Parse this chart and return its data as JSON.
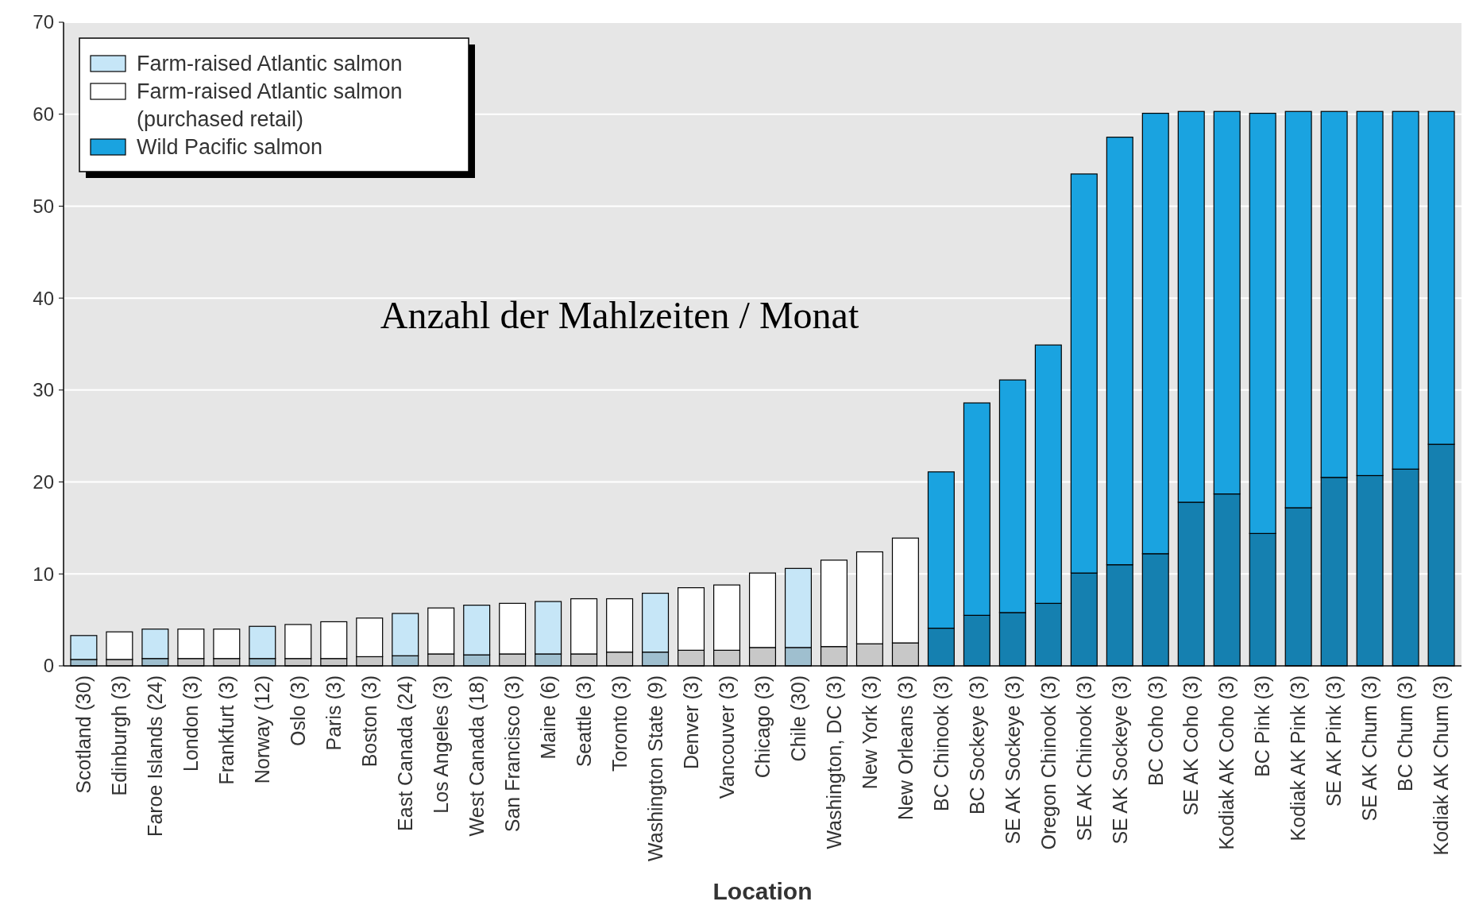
{
  "chart_data": {
    "type": "bar",
    "stacked": true,
    "xlabel": "Location",
    "annotations": [
      "Anzahl der Mahlzeiten / Monat"
    ],
    "categories": [
      "Scotland (30)",
      "Edinburgh (3)",
      "Faroe Islands (24)",
      "London (3)",
      "Frankfurt (3)",
      "Norway (12)",
      "Oslo (3)",
      "Paris (3)",
      "Boston (3)",
      "East Canada (24)",
      "Los Angeles (3)",
      "West Canada (18)",
      "San Francisco (3)",
      "Maine (6)",
      "Seattle (3)",
      "Toronto (3)",
      "Washington State (9)",
      "Denver (3)",
      "Vancouver (3)",
      "Chicago (3)",
      "Chile (30)",
      "Washington, DC (3)",
      "New York (3)",
      "New Orleans (3)",
      "BC Chinook (3)",
      "BC Sockeye (3)",
      "SE AK Sockeye (3)",
      "Oregon Chinook (3)",
      "SE AK Chinook (3)",
      "SE AK Sockeye (3)",
      "BC Coho (3)",
      "SE AK Coho (3)",
      "Kodiak AK Coho (3)",
      "BC Pink (3)",
      "Kodiak AK Pink (3)",
      "SE AK Pink (3)",
      "SE AK Chum (3)",
      "BC Chum (3)",
      "Kodiak AK Chum (3)"
    ],
    "series": [
      {
        "colors": [
          "#9fbfcf",
          "#c8c8c8",
          "#9fbfcf",
          "#c8c8c8",
          "#c8c8c8",
          "#9fbfcf",
          "#c8c8c8",
          "#c8c8c8",
          "#c8c8c8",
          "#9fbfcf",
          "#c8c8c8",
          "#9fbfcf",
          "#c8c8c8",
          "#9fbfcf",
          "#c8c8c8",
          "#c8c8c8",
          "#9fbfcf",
          "#c8c8c8",
          "#c8c8c8",
          "#c8c8c8",
          "#9fbfcf",
          "#c8c8c8",
          "#c8c8c8",
          "#c8c8c8",
          "#1580b0",
          "#1580b0",
          "#1580b0",
          "#1580b0",
          "#1580b0",
          "#1580b0",
          "#1580b0",
          "#1580b0",
          "#1580b0",
          "#1580b0",
          "#1580b0",
          "#1580b0",
          "#1580b0",
          "#1580b0",
          "#1580b0"
        ],
        "values": [
          0.7,
          0.7,
          0.8,
          0.8,
          0.8,
          0.8,
          0.8,
          0.8,
          1.0,
          1.1,
          1.3,
          1.2,
          1.3,
          1.3,
          1.3,
          1.5,
          1.5,
          1.7,
          1.7,
          2.0,
          2.0,
          2.1,
          2.4,
          2.5,
          4.1,
          5.5,
          5.8,
          6.8,
          10.1,
          11.0,
          12.2,
          17.8,
          18.7,
          14.4,
          17.2,
          20.5,
          20.7,
          21.4,
          24.1
        ]
      },
      {
        "name": "Farm-raised Atlantic salmon",
        "color": "#c6e6f7",
        "values": [
          2.6,
          null,
          3.2,
          null,
          null,
          3.5,
          null,
          null,
          null,
          4.6,
          null,
          5.4,
          null,
          5.7,
          null,
          null,
          6.4,
          null,
          null,
          null,
          8.6,
          null,
          null,
          null,
          null,
          null,
          null,
          null,
          null,
          null,
          null,
          null,
          null,
          null,
          null,
          null,
          null,
          null,
          null
        ]
      },
      {
        "name": "Farm-raised Atlantic salmon (purchased retail)",
        "color": "#ffffff",
        "values": [
          null,
          3.0,
          null,
          3.2,
          3.2,
          null,
          3.7,
          4.0,
          4.2,
          null,
          5.0,
          null,
          5.5,
          null,
          6.0,
          5.8,
          null,
          6.8,
          7.1,
          8.1,
          null,
          9.4,
          10.0,
          11.4,
          null,
          null,
          null,
          null,
          null,
          null,
          null,
          null,
          null,
          null,
          null,
          null,
          null,
          null,
          null
        ]
      },
      {
        "name": "Wild Pacific salmon",
        "color": "#1aa3e0",
        "values": [
          null,
          null,
          null,
          null,
          null,
          null,
          null,
          null,
          null,
          null,
          null,
          null,
          null,
          null,
          null,
          null,
          null,
          null,
          null,
          null,
          null,
          null,
          null,
          null,
          17.0,
          23.1,
          25.3,
          28.1,
          43.4,
          46.5,
          47.9,
          42.5,
          41.6,
          45.7,
          43.1,
          39.8,
          39.6,
          38.9,
          36.2
        ]
      }
    ],
    "ylim": [
      0,
      70
    ],
    "yticks": [
      0,
      10,
      20,
      30,
      40,
      50,
      60,
      70
    ],
    "grid": "y",
    "legend": "top left"
  }
}
